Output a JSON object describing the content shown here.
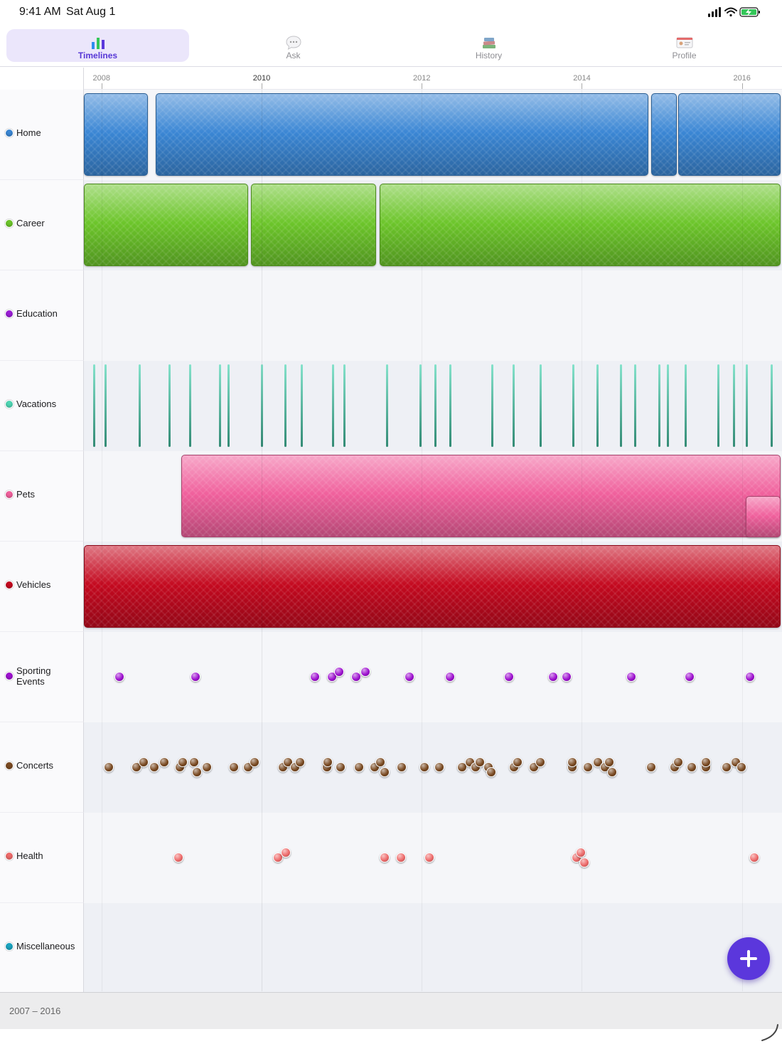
{
  "status_bar": {
    "time": "9:41 AM",
    "date": "Sat Aug 1"
  },
  "tabs": [
    {
      "label": "Timelines",
      "icon": "bar-chart-icon",
      "active": true
    },
    {
      "label": "Ask",
      "icon": "speech-bubble-icon",
      "active": false
    },
    {
      "label": "History",
      "icon": "books-icon",
      "active": false
    },
    {
      "label": "Profile",
      "icon": "id-card-icon",
      "active": false
    }
  ],
  "axis": {
    "ticks": [
      "2008",
      "2010",
      "2012",
      "2014",
      "2016"
    ],
    "major_tick": "2010"
  },
  "categories": [
    {
      "name": "Home",
      "color": "#3a86d4"
    },
    {
      "name": "Career",
      "color": "#6cc52a"
    },
    {
      "name": "Education",
      "color": "#9a1ed6"
    },
    {
      "name": "Vacations",
      "color": "#4fd6b4"
    },
    {
      "name": "Pets",
      "color": "#f0609c"
    },
    {
      "name": "Vehicles",
      "color": "#c4091f"
    },
    {
      "name": "Sporting Events",
      "color": "#9e12d0"
    },
    {
      "name": "Concerts",
      "color": "#7a4a22"
    },
    {
      "name": "Health",
      "color": "#ee6b6b"
    },
    {
      "name": "Miscellaneous",
      "color": "#1aa4c0"
    }
  ],
  "footer": {
    "range": "2007 – 2016"
  },
  "fab": {
    "icon": "plus-icon"
  },
  "chart_data": {
    "type": "timeline",
    "xlim": [
      2007.78,
      2016.5
    ],
    "ranges": {
      "Home": [
        [
          2007.78,
          2008.6
        ],
        [
          2008.68,
          2014.85
        ],
        [
          2014.87,
          2015.2
        ],
        [
          2015.2,
          2016.5
        ]
      ],
      "Career": [
        [
          2007.78,
          2009.85
        ],
        [
          2009.87,
          2011.45
        ],
        [
          2011.47,
          2016.5
        ]
      ],
      "Pets": [
        [
          2009.0,
          2016.5
        ],
        [
          2016.05,
          2016.5
        ]
      ],
      "Vehicles": [
        [
          2007.78,
          2016.5
        ]
      ]
    },
    "vacations": [
      2007.9,
      2008.05,
      2008.47,
      2008.85,
      2009.1,
      2009.48,
      2009.58,
      2010.0,
      2010.29,
      2010.5,
      2010.89,
      2011.03,
      2011.56,
      2011.98,
      2012.17,
      2012.35,
      2012.88,
      2013.14,
      2013.48,
      2013.89,
      2014.19,
      2014.48,
      2014.66,
      2014.96,
      2015.07,
      2015.29,
      2015.7,
      2015.9,
      2016.06,
      2016.37
    ],
    "sporting_events": [
      [
        2008.22,
        0
      ],
      [
        2009.17,
        0
      ],
      [
        2010.67,
        0
      ],
      [
        2010.88,
        0
      ],
      [
        2010.97,
        7
      ],
      [
        2011.18,
        0
      ],
      [
        2011.3,
        7
      ],
      [
        2011.85,
        0
      ],
      [
        2012.35,
        0
      ],
      [
        2013.09,
        0
      ],
      [
        2013.64,
        0
      ],
      [
        2013.81,
        0
      ],
      [
        2014.62,
        0
      ],
      [
        2015.35,
        0
      ],
      [
        2016.1,
        0
      ]
    ],
    "concerts": [
      [
        2008.09,
        0
      ],
      [
        2008.44,
        0
      ],
      [
        2008.53,
        7
      ],
      [
        2008.66,
        0
      ],
      [
        2008.78,
        7
      ],
      [
        2008.98,
        0
      ],
      [
        2009.01,
        7
      ],
      [
        2009.16,
        7
      ],
      [
        2009.19,
        -7
      ],
      [
        2009.32,
        0
      ],
      [
        2009.65,
        0
      ],
      [
        2009.83,
        0
      ],
      [
        2009.91,
        7
      ],
      [
        2010.27,
        0
      ],
      [
        2010.33,
        7
      ],
      [
        2010.42,
        0
      ],
      [
        2010.48,
        7
      ],
      [
        2010.82,
        0
      ],
      [
        2010.83,
        7
      ],
      [
        2010.99,
        0
      ],
      [
        2011.22,
        0
      ],
      [
        2011.41,
        0
      ],
      [
        2011.48,
        7
      ],
      [
        2011.54,
        -7
      ],
      [
        2011.75,
        0
      ],
      [
        2012.03,
        0
      ],
      [
        2012.22,
        0
      ],
      [
        2012.5,
        0
      ],
      [
        2012.6,
        7
      ],
      [
        2012.67,
        0
      ],
      [
        2012.73,
        7
      ],
      [
        2012.83,
        0
      ],
      [
        2012.87,
        -7
      ],
      [
        2013.15,
        0
      ],
      [
        2013.2,
        7
      ],
      [
        2013.4,
        0
      ],
      [
        2013.48,
        7
      ],
      [
        2013.88,
        0
      ],
      [
        2013.88,
        7
      ],
      [
        2014.08,
        0
      ],
      [
        2014.2,
        7
      ],
      [
        2014.29,
        0
      ],
      [
        2014.34,
        7
      ],
      [
        2014.38,
        -7
      ],
      [
        2014.87,
        0
      ],
      [
        2015.16,
        0
      ],
      [
        2015.2,
        7
      ],
      [
        2015.37,
        0
      ],
      [
        2015.55,
        0
      ],
      [
        2015.55,
        7
      ],
      [
        2015.81,
        0
      ],
      [
        2015.92,
        7
      ],
      [
        2015.99,
        0
      ]
    ],
    "health": [
      [
        2008.96,
        0
      ],
      [
        2010.2,
        0
      ],
      [
        2010.3,
        7
      ],
      [
        2011.54,
        0
      ],
      [
        2011.74,
        0
      ],
      [
        2012.1,
        0
      ],
      [
        2013.93,
        0
      ],
      [
        2013.99,
        7
      ],
      [
        2014.03,
        -7
      ],
      [
        2016.15,
        0
      ]
    ]
  }
}
